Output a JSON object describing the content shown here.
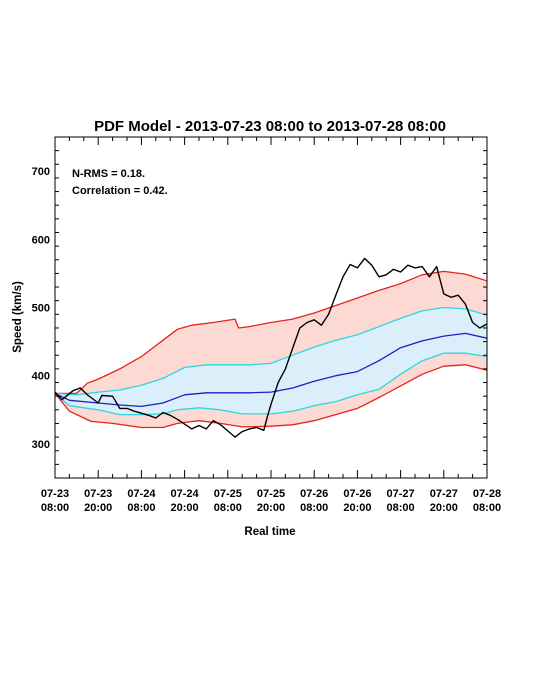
{
  "chart_data": {
    "type": "line",
    "title": "PDF Model - 2013-07-23 08:00 to 2013-07-28 08:00",
    "xlabel": "Real time",
    "ylabel": "Speed (km/s)",
    "xlim": [
      "2013-07-23 08:00",
      "2013-07-28 08:00"
    ],
    "ylim": [
      250,
      750
    ],
    "yticks": [
      300,
      400,
      500,
      600,
      700
    ],
    "xticks": [
      {
        "line1": "07-23",
        "line2": "08:00",
        "t": "2013-07-23 08:00"
      },
      {
        "line1": "07-23",
        "line2": "20:00",
        "t": "2013-07-23 20:00"
      },
      {
        "line1": "07-24",
        "line2": "08:00",
        "t": "2013-07-24 08:00"
      },
      {
        "line1": "07-24",
        "line2": "20:00",
        "t": "2013-07-24 20:00"
      },
      {
        "line1": "07-25",
        "line2": "08:00",
        "t": "2013-07-25 08:00"
      },
      {
        "line1": "07-25",
        "line2": "20:00",
        "t": "2013-07-25 20:00"
      },
      {
        "line1": "07-26",
        "line2": "08:00",
        "t": "2013-07-26 08:00"
      },
      {
        "line1": "07-26",
        "line2": "20:00",
        "t": "2013-07-26 20:00"
      },
      {
        "line1": "07-27",
        "line2": "08:00",
        "t": "2013-07-27 08:00"
      },
      {
        "line1": "07-27",
        "line2": "20:00",
        "t": "2013-07-27 20:00"
      },
      {
        "line1": "07-28",
        "line2": "08:00",
        "t": "2013-07-28 08:00"
      }
    ],
    "annotations": [
      "N-RMS = 0.18.",
      "Correlation = 0.42."
    ],
    "colors": {
      "outer_band_fill": "#fdd9d3",
      "inner_band_fill": "#dbeffa",
      "outer_bounds": "#e8231d",
      "inner_bounds": "#2fd6df",
      "median": "#1f1fc2",
      "observed": "#000000"
    },
    "series": [
      {
        "role": "outer-upper",
        "color": "#e8231d",
        "points": [
          [
            "2013-07-23 08:00",
            374
          ],
          [
            "2013-07-23 14:00",
            374
          ],
          [
            "2013-07-23 17:00",
            389
          ],
          [
            "2013-07-23 20:00",
            395
          ],
          [
            "2013-07-24 02:00",
            410
          ],
          [
            "2013-07-24 08:00",
            428
          ],
          [
            "2013-07-24 14:00",
            452
          ],
          [
            "2013-07-24 18:00",
            468
          ],
          [
            "2013-07-24 22:00",
            474
          ],
          [
            "2013-07-25 04:00",
            478
          ],
          [
            "2013-07-25 10:00",
            483
          ],
          [
            "2013-07-25 11:00",
            470
          ],
          [
            "2013-07-25 14:00",
            472
          ],
          [
            "2013-07-25 20:00",
            478
          ],
          [
            "2013-07-26 02:00",
            483
          ],
          [
            "2013-07-26 08:00",
            492
          ],
          [
            "2013-07-26 14:00",
            503
          ],
          [
            "2013-07-26 20:00",
            514
          ],
          [
            "2013-07-27 02:00",
            525
          ],
          [
            "2013-07-27 08:00",
            535
          ],
          [
            "2013-07-27 14:00",
            548
          ],
          [
            "2013-07-27 20:00",
            553
          ],
          [
            "2013-07-28 02:00",
            549
          ],
          [
            "2013-07-28 08:00",
            539
          ]
        ]
      },
      {
        "role": "inner-upper",
        "color": "#2fd6df",
        "points": [
          [
            "2013-07-23 08:00",
            374
          ],
          [
            "2013-07-23 14:00",
            372
          ],
          [
            "2013-07-23 20:00",
            376
          ],
          [
            "2013-07-24 02:00",
            379
          ],
          [
            "2013-07-24 08:00",
            386
          ],
          [
            "2013-07-24 14:00",
            396
          ],
          [
            "2013-07-24 20:00",
            412
          ],
          [
            "2013-07-25 02:00",
            416
          ],
          [
            "2013-07-25 08:00",
            416
          ],
          [
            "2013-07-25 14:00",
            416
          ],
          [
            "2013-07-25 20:00",
            418
          ],
          [
            "2013-07-26 02:00",
            430
          ],
          [
            "2013-07-26 08:00",
            442
          ],
          [
            "2013-07-26 14:00",
            452
          ],
          [
            "2013-07-26 20:00",
            460
          ],
          [
            "2013-07-27 02:00",
            472
          ],
          [
            "2013-07-27 08:00",
            484
          ],
          [
            "2013-07-27 14:00",
            495
          ],
          [
            "2013-07-27 20:00",
            500
          ],
          [
            "2013-07-28 02:00",
            498
          ],
          [
            "2013-07-28 08:00",
            489
          ]
        ]
      },
      {
        "role": "median",
        "color": "#1f1fc2",
        "points": [
          [
            "2013-07-23 08:00",
            374
          ],
          [
            "2013-07-23 12:00",
            364
          ],
          [
            "2013-07-23 20:00",
            360
          ],
          [
            "2013-07-24 02:00",
            357
          ],
          [
            "2013-07-24 08:00",
            355
          ],
          [
            "2013-07-24 14:00",
            360
          ],
          [
            "2013-07-24 20:00",
            372
          ],
          [
            "2013-07-25 02:00",
            375
          ],
          [
            "2013-07-25 08:00",
            375
          ],
          [
            "2013-07-25 14:00",
            375
          ],
          [
            "2013-07-25 20:00",
            376
          ],
          [
            "2013-07-26 02:00",
            382
          ],
          [
            "2013-07-26 08:00",
            392
          ],
          [
            "2013-07-26 14:00",
            400
          ],
          [
            "2013-07-26 20:00",
            406
          ],
          [
            "2013-07-27 02:00",
            422
          ],
          [
            "2013-07-27 08:00",
            441
          ],
          [
            "2013-07-27 14:00",
            451
          ],
          [
            "2013-07-27 20:00",
            458
          ],
          [
            "2013-07-28 02:00",
            462
          ],
          [
            "2013-07-28 08:00",
            455
          ]
        ]
      },
      {
        "role": "inner-lower",
        "color": "#2fd6df",
        "points": [
          [
            "2013-07-23 08:00",
            374
          ],
          [
            "2013-07-23 12:00",
            356
          ],
          [
            "2013-07-23 20:00",
            350
          ],
          [
            "2013-07-24 02:00",
            343
          ],
          [
            "2013-07-24 08:00",
            343
          ],
          [
            "2013-07-24 14:00",
            344
          ],
          [
            "2013-07-24 18:00",
            350
          ],
          [
            "2013-07-25 00:00",
            353
          ],
          [
            "2013-07-25 06:00",
            350
          ],
          [
            "2013-07-25 12:00",
            344
          ],
          [
            "2013-07-25 20:00",
            344
          ],
          [
            "2013-07-26 02:00",
            348
          ],
          [
            "2013-07-26 08:00",
            356
          ],
          [
            "2013-07-26 14:00",
            362
          ],
          [
            "2013-07-26 20:00",
            372
          ],
          [
            "2013-07-27 02:00",
            380
          ],
          [
            "2013-07-27 08:00",
            402
          ],
          [
            "2013-07-27 14:00",
            422
          ],
          [
            "2013-07-27 20:00",
            433
          ],
          [
            "2013-07-28 02:00",
            433
          ],
          [
            "2013-07-28 08:00",
            428
          ]
        ]
      },
      {
        "role": "outer-lower",
        "color": "#e8231d",
        "points": [
          [
            "2013-07-23 08:00",
            374
          ],
          [
            "2013-07-23 12:00",
            348
          ],
          [
            "2013-07-23 18:00",
            333
          ],
          [
            "2013-07-24 00:00",
            330
          ],
          [
            "2013-07-24 08:00",
            324
          ],
          [
            "2013-07-24 14:00",
            324
          ],
          [
            "2013-07-24 18:00",
            330
          ],
          [
            "2013-07-25 00:00",
            334
          ],
          [
            "2013-07-25 06:00",
            330
          ],
          [
            "2013-07-25 12:00",
            325
          ],
          [
            "2013-07-25 20:00",
            326
          ],
          [
            "2013-07-26 02:00",
            328
          ],
          [
            "2013-07-26 08:00",
            334
          ],
          [
            "2013-07-26 14:00",
            343
          ],
          [
            "2013-07-26 20:00",
            352
          ],
          [
            "2013-07-27 02:00",
            368
          ],
          [
            "2013-07-27 08:00",
            385
          ],
          [
            "2013-07-27 14:00",
            402
          ],
          [
            "2013-07-27 20:00",
            414
          ],
          [
            "2013-07-28 02:00",
            416
          ],
          [
            "2013-07-28 08:00",
            408
          ]
        ]
      },
      {
        "role": "observed",
        "color": "#000000",
        "points": [
          [
            "2013-07-23 08:00",
            376
          ],
          [
            "2013-07-23 10:00",
            365
          ],
          [
            "2013-07-23 13:00",
            378
          ],
          [
            "2013-07-23 15:00",
            382
          ],
          [
            "2013-07-23 17:00",
            372
          ],
          [
            "2013-07-23 18:00",
            368
          ],
          [
            "2013-07-23 20:00",
            360
          ],
          [
            "2013-07-23 21:00",
            371
          ],
          [
            "2013-07-24 00:00",
            370
          ],
          [
            "2013-07-24 02:00",
            352
          ],
          [
            "2013-07-24 04:00",
            352
          ],
          [
            "2013-07-24 06:00",
            348
          ],
          [
            "2013-07-24 08:00",
            345
          ],
          [
            "2013-07-24 10:00",
            342
          ],
          [
            "2013-07-24 12:00",
            338
          ],
          [
            "2013-07-24 14:00",
            346
          ],
          [
            "2013-07-24 16:00",
            342
          ],
          [
            "2013-07-24 18:00",
            336
          ],
          [
            "2013-07-24 20:00",
            329
          ],
          [
            "2013-07-24 22:00",
            322
          ],
          [
            "2013-07-25 00:00",
            327
          ],
          [
            "2013-07-25 02:00",
            322
          ],
          [
            "2013-07-25 04:00",
            334
          ],
          [
            "2013-07-25 06:00",
            328
          ],
          [
            "2013-07-25 08:00",
            319
          ],
          [
            "2013-07-25 10:00",
            310
          ],
          [
            "2013-07-25 12:00",
            318
          ],
          [
            "2013-07-25 14:00",
            322
          ],
          [
            "2013-07-25 16:00",
            324
          ],
          [
            "2013-07-25 18:00",
            320
          ],
          [
            "2013-07-25 19:00",
            340
          ],
          [
            "2013-07-25 20:00",
            358
          ],
          [
            "2013-07-25 22:00",
            390
          ],
          [
            "2013-07-26 00:00",
            410
          ],
          [
            "2013-07-26 02:00",
            440
          ],
          [
            "2013-07-26 04:00",
            470
          ],
          [
            "2013-07-26 06:00",
            478
          ],
          [
            "2013-07-26 08:00",
            482
          ],
          [
            "2013-07-26 10:00",
            474
          ],
          [
            "2013-07-26 12:00",
            490
          ],
          [
            "2013-07-26 14:00",
            518
          ],
          [
            "2013-07-26 16:00",
            545
          ],
          [
            "2013-07-26 18:00",
            563
          ],
          [
            "2013-07-26 20:00",
            558
          ],
          [
            "2013-07-26 22:00",
            572
          ],
          [
            "2013-07-27 00:00",
            562
          ],
          [
            "2013-07-27 02:00",
            545
          ],
          [
            "2013-07-27 04:00",
            548
          ],
          [
            "2013-07-27 06:00",
            556
          ],
          [
            "2013-07-27 08:00",
            552
          ],
          [
            "2013-07-27 10:00",
            562
          ],
          [
            "2013-07-27 12:00",
            558
          ],
          [
            "2013-07-27 14:00",
            560
          ],
          [
            "2013-07-27 16:00",
            545
          ],
          [
            "2013-07-27 18:00",
            560
          ],
          [
            "2013-07-27 20:00",
            520
          ],
          [
            "2013-07-27 22:00",
            515
          ],
          [
            "2013-07-28 00:00",
            518
          ],
          [
            "2013-07-28 02:00",
            505
          ],
          [
            "2013-07-28 04:00",
            478
          ],
          [
            "2013-07-28 06:00",
            470
          ],
          [
            "2013-07-28 08:00",
            476
          ]
        ]
      }
    ]
  }
}
